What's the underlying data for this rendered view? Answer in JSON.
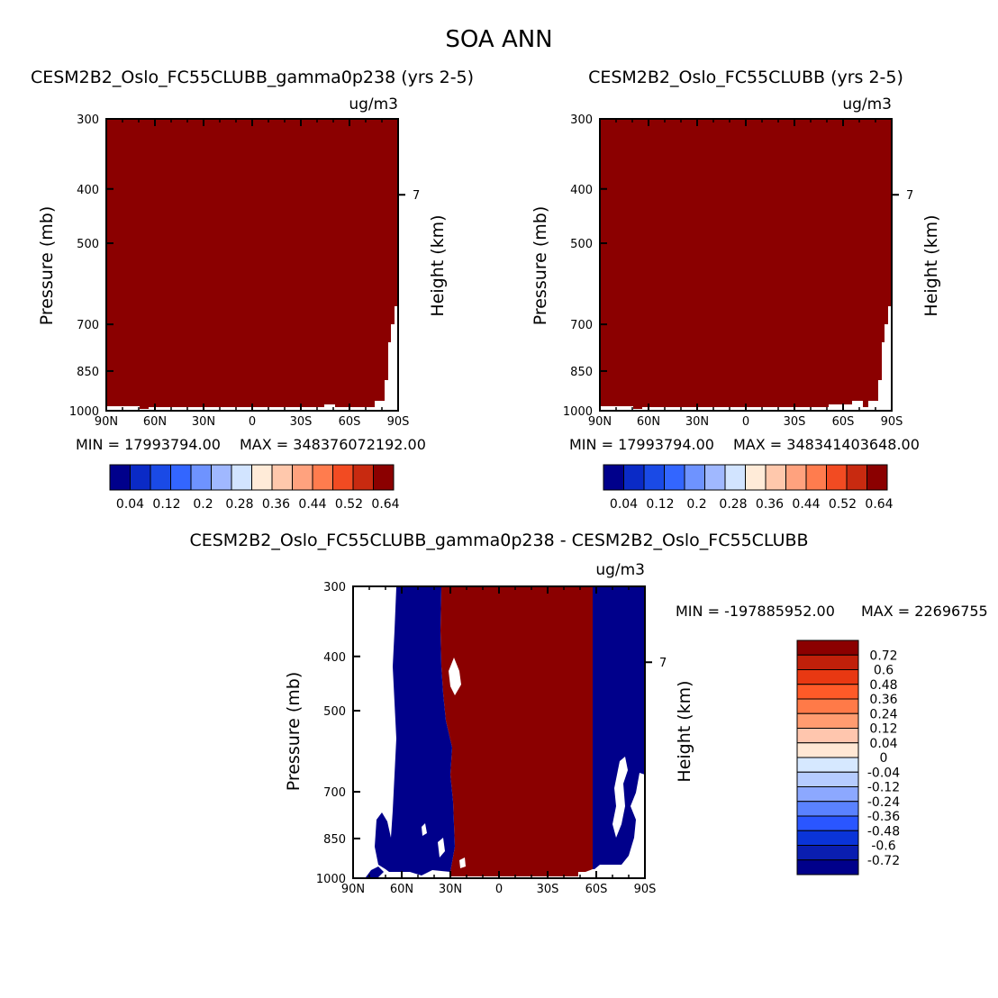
{
  "figure_title": "SOA ANN",
  "colors": {
    "positive_fill": "#8b0000",
    "negative_fill": "#00008b"
  },
  "palettes": {
    "top": [
      "#00008b",
      "#0a2ac6",
      "#1a4ae6",
      "#3366ff",
      "#6e93ff",
      "#a0b8ff",
      "#d2e4ff",
      "#ffebd8",
      "#ffc8ac",
      "#ffa27e",
      "#ff7c4e",
      "#f24b22",
      "#c82a10",
      "#8b0000"
    ],
    "bottom": [
      "#8b0000",
      "#c0200a",
      "#e83812",
      "#ff5a28",
      "#ff7a48",
      "#ff9c70",
      "#ffc6ae",
      "#ffe8d4",
      "#d6e8ff",
      "#b6ccff",
      "#8ca8ff",
      "#5a82ff",
      "#2a56ff",
      "#0a34d8",
      "#0a1eb0",
      "#00008b"
    ]
  },
  "chart_data": [
    {
      "type": "contour",
      "title": "CESM2B2_Oslo_FC55CLUBB_gamma0p238 (yrs 2-5)",
      "units": "ug/m3",
      "ylabel": "Pressure (mb)",
      "ylabel_right": "Height (km)",
      "x_ticks": [
        "90N",
        "60N",
        "30N",
        "0",
        "30S",
        "60S",
        "90S"
      ],
      "y_ticks": [
        "300",
        "400",
        "500",
        "700",
        "850",
        "1000"
      ],
      "right_ticks": [
        "7"
      ],
      "min_label": "MIN = 17993794.00",
      "max_label": "MAX = 348376072192.00",
      "colorbar_labels": [
        "0.04",
        "0.12",
        "0.2",
        "0.28",
        "0.36",
        "0.44",
        "0.52",
        "0.64"
      ]
    },
    {
      "type": "contour",
      "title": "CESM2B2_Oslo_FC55CLUBB (yrs 2-5)",
      "units": "ug/m3",
      "ylabel": "Pressure (mb)",
      "ylabel_right": "Height (km)",
      "x_ticks": [
        "90N",
        "60N",
        "30N",
        "0",
        "30S",
        "60S",
        "90S"
      ],
      "y_ticks": [
        "300",
        "400",
        "500",
        "700",
        "850",
        "1000"
      ],
      "right_ticks": [
        "7"
      ],
      "min_label": "MIN = 17993794.00",
      "max_label": "MAX = 348341403648.00",
      "colorbar_labels": [
        "0.04",
        "0.12",
        "0.2",
        "0.28",
        "0.36",
        "0.44",
        "0.52",
        "0.64"
      ]
    },
    {
      "type": "contour",
      "title": "CESM2B2_Oslo_FC55CLUBB_gamma0p238 - CESM2B2_Oslo_FC55CLUBB",
      "units": "ug/m3",
      "ylabel": "Pressure (mb)",
      "ylabel_right": "Height (km)",
      "x_ticks": [
        "90N",
        "60N",
        "30N",
        "0",
        "30S",
        "60S",
        "90S"
      ],
      "y_ticks": [
        "300",
        "400",
        "500",
        "700",
        "850",
        "1000"
      ],
      "right_ticks": [
        "7"
      ],
      "min_label": "MIN = -197885952.00",
      "max_label": "MAX = 22696755",
      "colorbar_labels": [
        "0.72",
        "0.6",
        "0.48",
        "0.36",
        "0.24",
        "0.12",
        "0.04",
        "0",
        "-0.04",
        "-0.12",
        "-0.24",
        "-0.36",
        "-0.48",
        "-0.6",
        "-0.72"
      ]
    }
  ]
}
